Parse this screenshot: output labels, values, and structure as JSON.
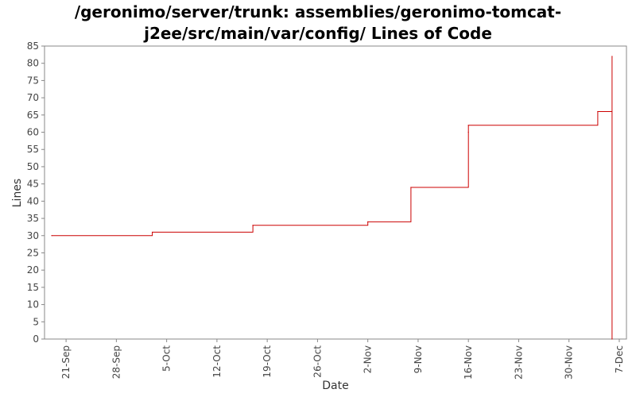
{
  "chart_data": {
    "type": "line",
    "title_line1": "/geronimo/server/trunk: assemblies/geronimo-tomcat-",
    "title_line2": "j2ee/src/main/var/config/ Lines of Code",
    "xlabel": "Date",
    "ylabel": "Lines",
    "ylim": [
      0,
      85
    ],
    "yticks": [
      0,
      5,
      10,
      15,
      20,
      25,
      30,
      35,
      40,
      45,
      50,
      55,
      60,
      65,
      70,
      75,
      80,
      85
    ],
    "xlim": [
      "2006-09-18",
      "2006-12-08"
    ],
    "xticks": [
      {
        "label": "21-Sep",
        "date": "2006-09-21"
      },
      {
        "label": "28-Sep",
        "date": "2006-09-28"
      },
      {
        "label": "5-Oct",
        "date": "2006-10-05"
      },
      {
        "label": "12-Oct",
        "date": "2006-10-12"
      },
      {
        "label": "19-Oct",
        "date": "2006-10-19"
      },
      {
        "label": "26-Oct",
        "date": "2006-10-26"
      },
      {
        "label": "2-Nov",
        "date": "2006-11-02"
      },
      {
        "label": "9-Nov",
        "date": "2006-11-09"
      },
      {
        "label": "16-Nov",
        "date": "2006-11-16"
      },
      {
        "label": "23-Nov",
        "date": "2006-11-23"
      },
      {
        "label": "30-Nov",
        "date": "2006-11-30"
      },
      {
        "label": "7-Dec",
        "date": "2006-12-07"
      }
    ],
    "line_style": "step",
    "grid": false,
    "series": [
      {
        "color": "#cc0000",
        "points": [
          {
            "x": "2006-09-19",
            "y": 30
          },
          {
            "x": "2006-10-03",
            "y": 31
          },
          {
            "x": "2006-10-17",
            "y": 33
          },
          {
            "x": "2006-11-02",
            "y": 34
          },
          {
            "x": "2006-11-08",
            "y": 44
          },
          {
            "x": "2006-11-16",
            "y": 60
          },
          {
            "x": "2006-11-16",
            "y": 62
          },
          {
            "x": "2006-12-04",
            "y": 66
          },
          {
            "x": "2006-12-06",
            "y": 82
          },
          {
            "x": "2006-12-06",
            "y": 0
          }
        ]
      }
    ]
  }
}
